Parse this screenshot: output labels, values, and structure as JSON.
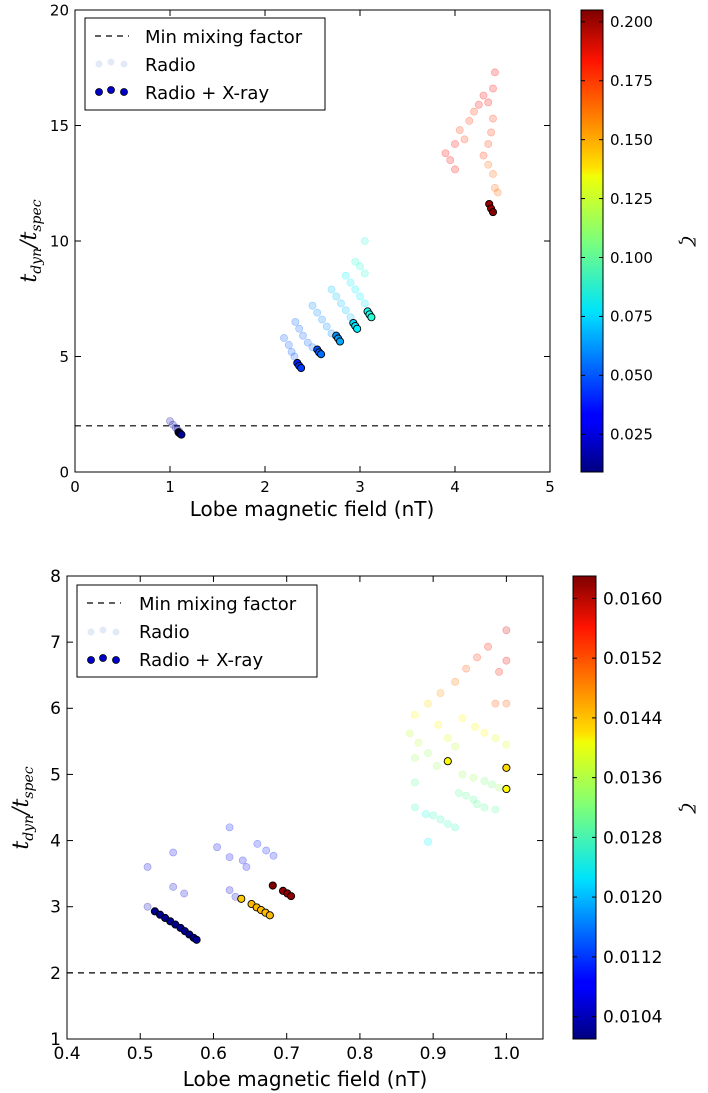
{
  "chart_data": [
    {
      "type": "scatter",
      "xlabel": "Lobe magnetic field (nT)",
      "ylabel": "t_dyn / t_spec",
      "xlim": [
        0,
        5
      ],
      "ylim": [
        0,
        20
      ],
      "x_ticks": [
        "0",
        "1",
        "2",
        "3",
        "4",
        "5"
      ],
      "y_ticks": [
        "0",
        "5",
        "10",
        "15",
        "20"
      ],
      "min_mixing_factor": 2,
      "legend": {
        "placement": "top-left",
        "entries": [
          "Min mixing factor",
          "Radio",
          "Radio + X-ray"
        ]
      },
      "colorbar": {
        "label": "ζ",
        "range": [
          0.009,
          0.205
        ],
        "ticks": [
          "0.025",
          "0.050",
          "0.075",
          "0.100",
          "0.125",
          "0.150",
          "0.175",
          "0.200"
        ],
        "colormap": "jet"
      },
      "series": [
        {
          "name": "Radio",
          "points": [
            {
              "x": 1.0,
              "y": 2.2,
              "z": 0.015
            },
            {
              "x": 1.03,
              "y": 2.05,
              "z": 0.015
            },
            {
              "x": 1.06,
              "y": 1.92,
              "z": 0.015
            },
            {
              "x": 1.08,
              "y": 1.82,
              "z": 0.015
            },
            {
              "x": 1.1,
              "y": 1.75,
              "z": 0.015
            },
            {
              "x": 2.2,
              "y": 5.8,
              "z": 0.05
            },
            {
              "x": 2.25,
              "y": 5.5,
              "z": 0.05
            },
            {
              "x": 2.28,
              "y": 5.2,
              "z": 0.05
            },
            {
              "x": 2.31,
              "y": 5.0,
              "z": 0.05
            },
            {
              "x": 2.32,
              "y": 6.5,
              "z": 0.052
            },
            {
              "x": 2.36,
              "y": 6.2,
              "z": 0.052
            },
            {
              "x": 2.4,
              "y": 5.9,
              "z": 0.052
            },
            {
              "x": 2.45,
              "y": 5.6,
              "z": 0.052
            },
            {
              "x": 2.5,
              "y": 5.4,
              "z": 0.052
            },
            {
              "x": 2.5,
              "y": 7.2,
              "z": 0.06
            },
            {
              "x": 2.55,
              "y": 6.9,
              "z": 0.06
            },
            {
              "x": 2.6,
              "y": 6.6,
              "z": 0.06
            },
            {
              "x": 2.65,
              "y": 6.3,
              "z": 0.06
            },
            {
              "x": 2.7,
              "y": 6.0,
              "z": 0.06
            },
            {
              "x": 2.7,
              "y": 7.9,
              "z": 0.07
            },
            {
              "x": 2.75,
              "y": 7.6,
              "z": 0.07
            },
            {
              "x": 2.8,
              "y": 7.3,
              "z": 0.07
            },
            {
              "x": 2.85,
              "y": 7.0,
              "z": 0.07
            },
            {
              "x": 2.9,
              "y": 6.7,
              "z": 0.07
            },
            {
              "x": 2.85,
              "y": 8.5,
              "z": 0.08
            },
            {
              "x": 2.9,
              "y": 8.2,
              "z": 0.08
            },
            {
              "x": 2.95,
              "y": 7.9,
              "z": 0.08
            },
            {
              "x": 3.0,
              "y": 7.6,
              "z": 0.08
            },
            {
              "x": 3.05,
              "y": 7.3,
              "z": 0.08
            },
            {
              "x": 2.95,
              "y": 9.1,
              "z": 0.09
            },
            {
              "x": 3.0,
              "y": 8.9,
              "z": 0.09
            },
            {
              "x": 3.05,
              "y": 8.6,
              "z": 0.09
            },
            {
              "x": 3.05,
              "y": 10.0,
              "z": 0.09
            },
            {
              "x": 3.9,
              "y": 13.8,
              "z": 0.18
            },
            {
              "x": 3.95,
              "y": 13.5,
              "z": 0.18
            },
            {
              "x": 4.0,
              "y": 13.1,
              "z": 0.18
            },
            {
              "x": 4.0,
              "y": 14.2,
              "z": 0.18
            },
            {
              "x": 4.05,
              "y": 14.8,
              "z": 0.17
            },
            {
              "x": 4.1,
              "y": 14.4,
              "z": 0.17
            },
            {
              "x": 4.15,
              "y": 15.2,
              "z": 0.17
            },
            {
              "x": 4.2,
              "y": 15.6,
              "z": 0.17
            },
            {
              "x": 4.25,
              "y": 15.9,
              "z": 0.18
            },
            {
              "x": 4.3,
              "y": 16.3,
              "z": 0.18
            },
            {
              "x": 4.35,
              "y": 16.0,
              "z": 0.18
            },
            {
              "x": 4.4,
              "y": 16.6,
              "z": 0.18
            },
            {
              "x": 4.42,
              "y": 17.3,
              "z": 0.18
            },
            {
              "x": 4.4,
              "y": 15.3,
              "z": 0.17
            },
            {
              "x": 4.38,
              "y": 14.7,
              "z": 0.17
            },
            {
              "x": 4.35,
              "y": 14.2,
              "z": 0.17
            },
            {
              "x": 4.3,
              "y": 13.7,
              "z": 0.17
            },
            {
              "x": 4.35,
              "y": 13.3,
              "z": 0.16
            },
            {
              "x": 4.4,
              "y": 12.9,
              "z": 0.16
            },
            {
              "x": 4.42,
              "y": 12.3,
              "z": 0.16
            },
            {
              "x": 4.45,
              "y": 12.1,
              "z": 0.16
            }
          ]
        },
        {
          "name": "Radio + X-ray",
          "points": [
            {
              "x": 1.09,
              "y": 1.72,
              "z": 0.009
            },
            {
              "x": 1.1,
              "y": 1.68,
              "z": 0.01
            },
            {
              "x": 1.11,
              "y": 1.65,
              "z": 0.012
            },
            {
              "x": 1.12,
              "y": 1.62,
              "z": 0.014
            },
            {
              "x": 2.34,
              "y": 4.72,
              "z": 0.04
            },
            {
              "x": 2.36,
              "y": 4.6,
              "z": 0.042
            },
            {
              "x": 2.38,
              "y": 4.5,
              "z": 0.045
            },
            {
              "x": 2.55,
              "y": 5.3,
              "z": 0.05
            },
            {
              "x": 2.57,
              "y": 5.18,
              "z": 0.052
            },
            {
              "x": 2.59,
              "y": 5.1,
              "z": 0.055
            },
            {
              "x": 2.75,
              "y": 5.9,
              "z": 0.062
            },
            {
              "x": 2.77,
              "y": 5.78,
              "z": 0.064
            },
            {
              "x": 2.79,
              "y": 5.65,
              "z": 0.066
            },
            {
              "x": 2.93,
              "y": 6.45,
              "z": 0.075
            },
            {
              "x": 2.95,
              "y": 6.32,
              "z": 0.077
            },
            {
              "x": 2.97,
              "y": 6.2,
              "z": 0.079
            },
            {
              "x": 3.08,
              "y": 6.95,
              "z": 0.085
            },
            {
              "x": 3.1,
              "y": 6.82,
              "z": 0.087
            },
            {
              "x": 3.12,
              "y": 6.7,
              "z": 0.09
            },
            {
              "x": 4.36,
              "y": 11.6,
              "z": 0.2
            },
            {
              "x": 4.38,
              "y": 11.4,
              "z": 0.2
            },
            {
              "x": 4.4,
              "y": 11.25,
              "z": 0.205
            }
          ]
        }
      ]
    },
    {
      "type": "scatter",
      "xlabel": "Lobe magnetic field (nT)",
      "ylabel": "t_dyn / t_spec",
      "xlim": [
        0.4,
        1.05
      ],
      "ylim": [
        1,
        8
      ],
      "x_ticks": [
        "0.4",
        "0.5",
        "0.6",
        "0.7",
        "0.8",
        "0.9",
        "1.0"
      ],
      "y_ticks": [
        "1",
        "2",
        "3",
        "4",
        "5",
        "6",
        "7",
        "8"
      ],
      "min_mixing_factor": 2,
      "legend": {
        "placement": "top-left",
        "entries": [
          "Min mixing factor",
          "Radio",
          "Radio + X-ray"
        ]
      },
      "colorbar": {
        "label": "ζ",
        "range": [
          0.0101,
          0.0163
        ],
        "ticks": [
          "0.0104",
          "0.0112",
          "0.0120",
          "0.0128",
          "0.0136",
          "0.0144",
          "0.0152",
          "0.0160"
        ],
        "colormap": "jet"
      },
      "series": [
        {
          "name": "Radio",
          "points": [
            {
              "x": 0.51,
              "y": 3.6,
              "z": 0.0106
            },
            {
              "x": 0.545,
              "y": 3.82,
              "z": 0.0108
            },
            {
              "x": 0.545,
              "y": 3.3,
              "z": 0.0106
            },
            {
              "x": 0.56,
              "y": 3.2,
              "z": 0.0106
            },
            {
              "x": 0.51,
              "y": 3.0,
              "z": 0.0104
            },
            {
              "x": 0.605,
              "y": 3.9,
              "z": 0.0108
            },
            {
              "x": 0.622,
              "y": 4.2,
              "z": 0.011
            },
            {
              "x": 0.622,
              "y": 3.75,
              "z": 0.0108
            },
            {
              "x": 0.64,
              "y": 3.7,
              "z": 0.0108
            },
            {
              "x": 0.645,
              "y": 3.6,
              "z": 0.0108
            },
            {
              "x": 0.66,
              "y": 3.95,
              "z": 0.011
            },
            {
              "x": 0.672,
              "y": 3.85,
              "z": 0.011
            },
            {
              "x": 0.682,
              "y": 3.77,
              "z": 0.011
            },
            {
              "x": 0.622,
              "y": 3.25,
              "z": 0.0106
            },
            {
              "x": 0.63,
              "y": 3.15,
              "z": 0.0106
            },
            {
              "x": 0.868,
              "y": 5.62,
              "z": 0.0136
            },
            {
              "x": 0.875,
              "y": 5.9,
              "z": 0.014
            },
            {
              "x": 0.875,
              "y": 5.25,
              "z": 0.0134
            },
            {
              "x": 0.875,
              "y": 4.88,
              "z": 0.013
            },
            {
              "x": 0.875,
              "y": 4.5,
              "z": 0.0128
            },
            {
              "x": 0.89,
              "y": 4.4,
              "z": 0.0126
            },
            {
              "x": 0.893,
              "y": 3.98,
              "z": 0.0124
            },
            {
              "x": 0.88,
              "y": 5.48,
              "z": 0.0136
            },
            {
              "x": 0.893,
              "y": 5.32,
              "z": 0.0134
            },
            {
              "x": 0.905,
              "y": 5.13,
              "z": 0.0134
            },
            {
              "x": 0.893,
              "y": 6.07,
              "z": 0.0142
            },
            {
              "x": 0.907,
              "y": 5.75,
              "z": 0.014
            },
            {
              "x": 0.92,
              "y": 5.55,
              "z": 0.0138
            },
            {
              "x": 0.93,
              "y": 5.42,
              "z": 0.0136
            },
            {
              "x": 0.91,
              "y": 6.23,
              "z": 0.0146
            },
            {
              "x": 0.93,
              "y": 6.4,
              "z": 0.0148
            },
            {
              "x": 0.945,
              "y": 6.6,
              "z": 0.015
            },
            {
              "x": 0.96,
              "y": 6.77,
              "z": 0.0152
            },
            {
              "x": 0.975,
              "y": 6.93,
              "z": 0.0154
            },
            {
              "x": 1.0,
              "y": 7.18,
              "z": 0.0158
            },
            {
              "x": 1.0,
              "y": 6.72,
              "z": 0.0156
            },
            {
              "x": 0.99,
              "y": 6.55,
              "z": 0.0154
            },
            {
              "x": 0.985,
              "y": 6.07,
              "z": 0.015
            },
            {
              "x": 1.0,
              "y": 6.07,
              "z": 0.015
            },
            {
              "x": 0.94,
              "y": 5.85,
              "z": 0.014
            },
            {
              "x": 0.957,
              "y": 5.72,
              "z": 0.014
            },
            {
              "x": 0.97,
              "y": 5.63,
              "z": 0.014
            },
            {
              "x": 0.985,
              "y": 5.55,
              "z": 0.0138
            },
            {
              "x": 1.0,
              "y": 5.45,
              "z": 0.0138
            },
            {
              "x": 0.94,
              "y": 5.0,
              "z": 0.0134
            },
            {
              "x": 0.955,
              "y": 4.95,
              "z": 0.0134
            },
            {
              "x": 0.97,
              "y": 4.9,
              "z": 0.0132
            },
            {
              "x": 0.98,
              "y": 4.85,
              "z": 0.0132
            },
            {
              "x": 0.99,
              "y": 4.8,
              "z": 0.0134
            },
            {
              "x": 0.9,
              "y": 4.38,
              "z": 0.0128
            },
            {
              "x": 0.91,
              "y": 4.32,
              "z": 0.0128
            },
            {
              "x": 0.92,
              "y": 4.25,
              "z": 0.0128
            },
            {
              "x": 0.93,
              "y": 4.2,
              "z": 0.0128
            },
            {
              "x": 0.935,
              "y": 4.72,
              "z": 0.013
            },
            {
              "x": 0.945,
              "y": 4.68,
              "z": 0.013
            },
            {
              "x": 0.955,
              "y": 4.62,
              "z": 0.013
            },
            {
              "x": 0.96,
              "y": 4.55,
              "z": 0.013
            },
            {
              "x": 0.97,
              "y": 4.5,
              "z": 0.013
            },
            {
              "x": 0.985,
              "y": 4.47,
              "z": 0.013
            }
          ]
        },
        {
          "name": "Radio + X-ray",
          "points": [
            {
              "x": 0.52,
              "y": 2.93,
              "z": 0.0102
            },
            {
              "x": 0.527,
              "y": 2.88,
              "z": 0.0102
            },
            {
              "x": 0.534,
              "y": 2.83,
              "z": 0.0102
            },
            {
              "x": 0.541,
              "y": 2.78,
              "z": 0.0102
            },
            {
              "x": 0.548,
              "y": 2.73,
              "z": 0.0102
            },
            {
              "x": 0.555,
              "y": 2.68,
              "z": 0.0102
            },
            {
              "x": 0.561,
              "y": 2.63,
              "z": 0.0102
            },
            {
              "x": 0.567,
              "y": 2.58,
              "z": 0.0102
            },
            {
              "x": 0.573,
              "y": 2.53,
              "z": 0.0102
            },
            {
              "x": 0.577,
              "y": 2.5,
              "z": 0.0102
            },
            {
              "x": 0.638,
              "y": 3.12,
              "z": 0.0143
            },
            {
              "x": 0.652,
              "y": 3.04,
              "z": 0.0144
            },
            {
              "x": 0.659,
              "y": 2.99,
              "z": 0.0144
            },
            {
              "x": 0.665,
              "y": 2.95,
              "z": 0.0144
            },
            {
              "x": 0.671,
              "y": 2.91,
              "z": 0.0144
            },
            {
              "x": 0.677,
              "y": 2.87,
              "z": 0.0144
            },
            {
              "x": 0.681,
              "y": 3.32,
              "z": 0.0163
            },
            {
              "x": 0.695,
              "y": 3.24,
              "z": 0.0162
            },
            {
              "x": 0.701,
              "y": 3.2,
              "z": 0.0162
            },
            {
              "x": 0.706,
              "y": 3.16,
              "z": 0.0162
            },
            {
              "x": 0.92,
              "y": 5.2,
              "z": 0.014
            },
            {
              "x": 1.0,
              "y": 5.1,
              "z": 0.0142
            },
            {
              "x": 1.0,
              "y": 4.78,
              "z": 0.014
            }
          ]
        }
      ]
    }
  ]
}
